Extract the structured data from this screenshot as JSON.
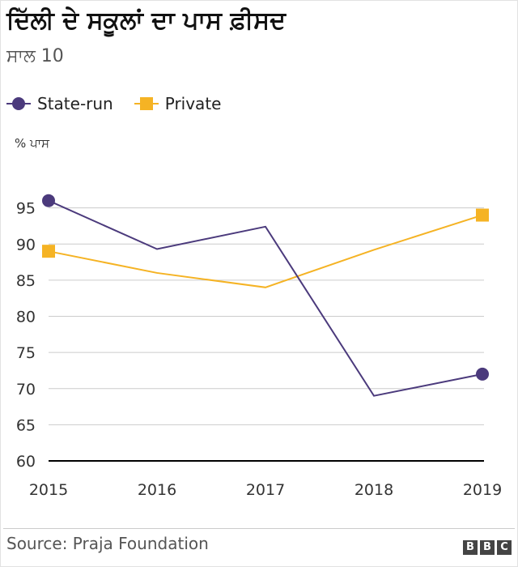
{
  "title": "ਦਿੱਲੀ ਦੇ ਸਕੂਲਾਂ ਦਾ ਪਾਸ ਫ਼ੀਸਦ",
  "subtitle": "ਸਾਲ 10",
  "source": "Source: Praja Foundation",
  "logo": [
    "B",
    "B",
    "C"
  ],
  "colors": {
    "state_run": "#4b3a7c",
    "private": "#f5b324",
    "grid": "#cccccc",
    "axis": "#000000"
  },
  "chart_data": {
    "type": "line",
    "title": "ਦਿੱਲੀ ਦੇ ਸਕੂਲਾਂ ਦਾ ਪਾਸ ਫ਼ੀਸਦ",
    "subtitle": "ਸਾਲ 10",
    "xlabel": "",
    "ylabel": "% ਪਾਸ",
    "categories": [
      "2015",
      "2016",
      "2017",
      "2018",
      "2019"
    ],
    "yticks": [
      "60",
      "65",
      "70",
      "75",
      "80",
      "85",
      "90",
      "95"
    ],
    "ylim": [
      60,
      100
    ],
    "legend_position": "top-left",
    "series": [
      {
        "name": "State-run",
        "marker": "circle",
        "values": [
          96,
          89.3,
          92.4,
          69,
          72
        ]
      },
      {
        "name": "Private",
        "marker": "square",
        "values": [
          89,
          86,
          84,
          89.2,
          94
        ]
      }
    ]
  }
}
